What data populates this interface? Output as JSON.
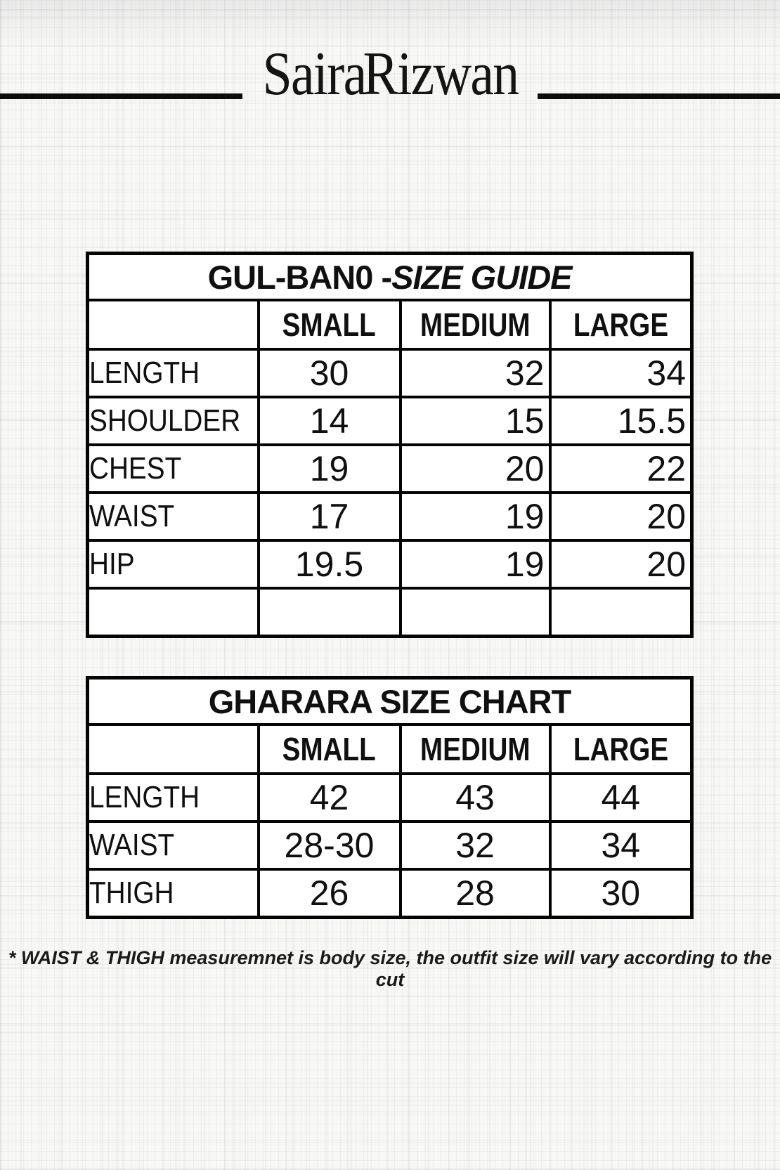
{
  "brand": {
    "name": "Saira Rizwan"
  },
  "colors": {
    "ink": "#0d0d0d",
    "paper": "#f7f7f6"
  },
  "tables": [
    {
      "title": {
        "bold": "GUL-BAN0 -",
        "italic": "SIZE GUIDE"
      },
      "columns": [
        "SMALL",
        "MEDIUM",
        "LARGE"
      ],
      "rows": [
        {
          "label": "LENGTH",
          "values": [
            "30",
            "32",
            "34"
          ]
        },
        {
          "label": "SHOULDER",
          "values": [
            "14",
            "15",
            "15.5"
          ]
        },
        {
          "label": "CHEST",
          "values": [
            "19",
            "20",
            "22"
          ]
        },
        {
          "label": "WAIST",
          "values": [
            "17",
            "19",
            "20"
          ]
        },
        {
          "label": "HIP",
          "values": [
            "19.5",
            "19",
            "20"
          ]
        },
        {
          "label": "",
          "values": [
            "",
            "",
            ""
          ]
        }
      ]
    },
    {
      "title": {
        "bold": "GHARARA SIZE CHART",
        "italic": ""
      },
      "columns": [
        "SMALL",
        "MEDIUM",
        "LARGE"
      ],
      "rows": [
        {
          "label": "LENGTH",
          "values": [
            "42",
            "43",
            "44"
          ]
        },
        {
          "label": "WAIST",
          "values": [
            "28-30",
            "32",
            "34"
          ]
        },
        {
          "label": "THIGH",
          "values": [
            "26",
            "28",
            "30"
          ]
        }
      ]
    }
  ],
  "footnote": "* WAIST & THIGH measuremnet is body size, the outfit size will vary according to the cut"
}
